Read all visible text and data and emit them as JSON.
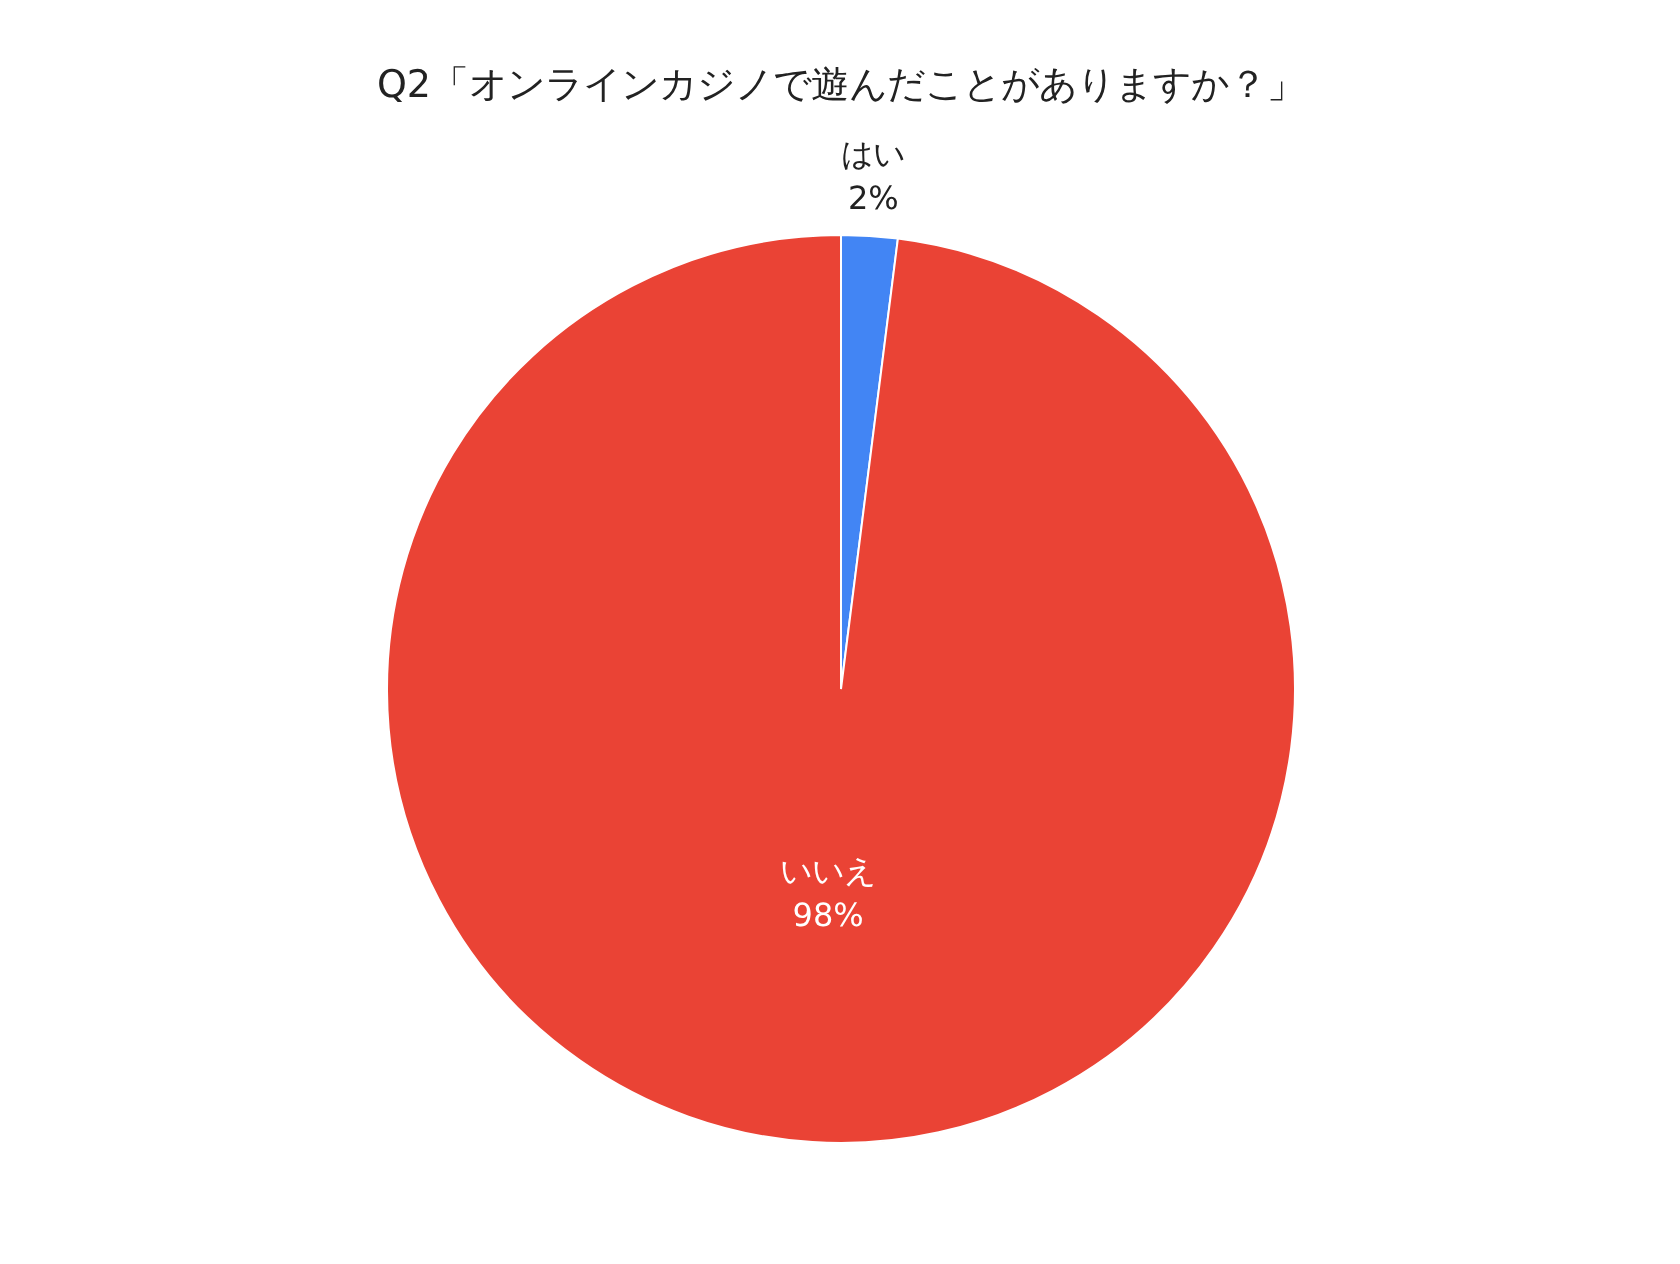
{
  "chart_data": {
    "type": "pie",
    "title": "Q2「オンラインカジノで遊んだことがありますか？」",
    "categories": [
      "はい",
      "いいえ"
    ],
    "values": [
      2,
      98
    ],
    "colors": [
      "#4285f4",
      "#ea4335"
    ],
    "value_labels": [
      "2%",
      "98%"
    ]
  }
}
